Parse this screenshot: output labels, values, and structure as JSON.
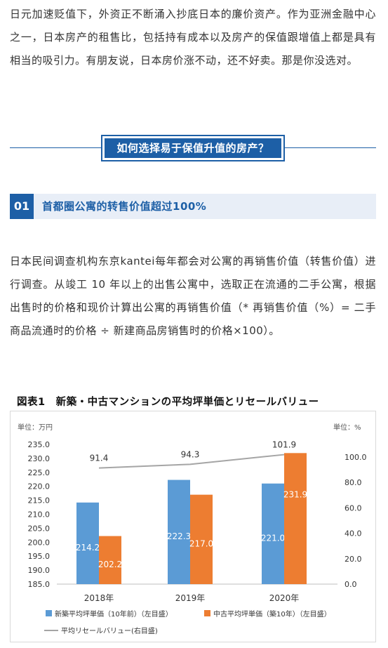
{
  "paragraph1": "日元加速贬值下，外资正不断涌入抄底日本的廉价资产。作为亚洲金融中心之一，日本房产的租售比，包括持有成本以及房产的保值跟增值上都是具有相当的吸引力。有朋友说，日本房价涨不动，还不好卖。那是你没选对。",
  "section_heading": "如何选择易于保值升值的房产？",
  "subsection": {
    "number": "01",
    "title": "首都圈公寓的转售价值超过100%"
  },
  "paragraph2": "日本民间调查机构东京kantei每年都会对公寓的再销售价值（转售价值）进行调查。从竣工 10 年以上的出售公寓中，选取正在流通的二手公寓，根据出售时的价格和现价计算出公寓的再销售价值（* 再销售价值（%）= 二手商品流通时的价格 ÷ 新建商品房销售时的价格×100）。",
  "chart_title": "图表1　新築・中古マンションの平均坪単価とリセールバリュー",
  "chart_data": {
    "type": "bar",
    "title": "図表1　新築・中古マンションの平均坪単価とリセールバリュー",
    "left_unit": "単位：万円",
    "right_unit": "単位：%",
    "categories": [
      "2018年",
      "2019年",
      "2020年"
    ],
    "series": [
      {
        "name": "新築平均坪単価（10年前）（左目盛）",
        "type": "bar",
        "axis": "left",
        "color": "#5b9bd5",
        "values": [
          214.2,
          222.3,
          221.0
        ],
        "labels": [
          "214.2",
          "222.3",
          "221.0"
        ]
      },
      {
        "name": "中古平均坪単価（築10年）（左目盛）",
        "type": "bar",
        "axis": "left",
        "color": "#ed7d31",
        "values": [
          202.2,
          217.0,
          231.9
        ],
        "labels": [
          "202.2",
          "217.0",
          "231.9"
        ]
      },
      {
        "name": "平均リセールバリュー(右目盛)",
        "type": "line",
        "axis": "right",
        "color": "#a5a5a5",
        "values": [
          91.4,
          94.3,
          101.9
        ],
        "labels": [
          "91.4",
          "94.3",
          "101.9"
        ]
      }
    ],
    "left_axis": {
      "range": [
        185.0,
        235.0
      ],
      "ticks": [
        "185.0",
        "190.0",
        "195.0",
        "200.0",
        "205.0",
        "210.0",
        "215.0",
        "220.0",
        "225.0",
        "230.0",
        "235.0"
      ]
    },
    "right_axis": {
      "range": [
        0.0,
        100.0
      ],
      "ticks": [
        "0.0",
        "20.0",
        "40.0",
        "60.0",
        "80.0",
        "100.0"
      ]
    },
    "grid": false,
    "legend_position": "bottom"
  }
}
